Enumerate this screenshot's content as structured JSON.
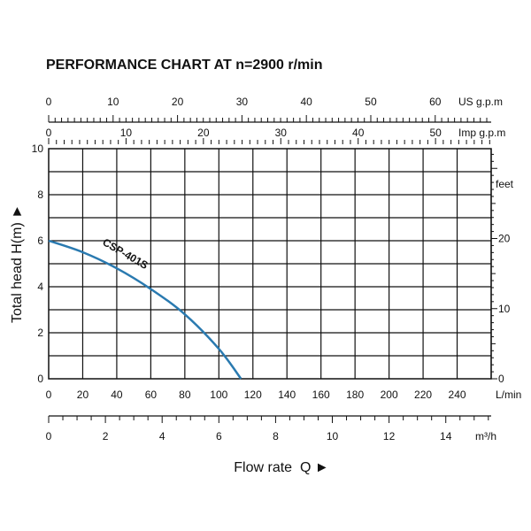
{
  "chart_data": {
    "type": "line",
    "title": "PERFORMANCE CHART AT n=2900 r/min",
    "xlabel": "Flow rate  Q ►",
    "ylabel": "Total head H(m) ►",
    "grid": true,
    "x_unit": "L/min",
    "xlim": [
      0,
      260
    ],
    "x_ticks": [
      0,
      20,
      40,
      60,
      80,
      100,
      120,
      140,
      160,
      180,
      200,
      220,
      240
    ],
    "y_unit_left": "m",
    "ylim": [
      0,
      10
    ],
    "y_ticks": [
      0,
      2,
      4,
      6,
      8,
      10
    ],
    "right_axis": {
      "unit": "feet",
      "ticks": [
        0,
        10,
        20
      ]
    },
    "top_axis_us": {
      "unit": "US g.p.m",
      "ticks": [
        0,
        10,
        20,
        30,
        40,
        50,
        60
      ]
    },
    "top_axis_imp": {
      "unit": "Imp g.p.m",
      "ticks": [
        0,
        10,
        20,
        30,
        40,
        50
      ]
    },
    "bottom_axis_m3h": {
      "unit": "m³/h",
      "ticks": [
        0,
        2,
        4,
        6,
        8,
        10,
        12,
        14
      ]
    },
    "series": [
      {
        "name": "CSP-401S",
        "color": "#2a7ab0",
        "x": [
          0,
          20,
          40,
          60,
          80,
          100,
          113
        ],
        "y": [
          6.0,
          5.5,
          4.8,
          3.9,
          2.8,
          1.3,
          0
        ]
      }
    ]
  }
}
